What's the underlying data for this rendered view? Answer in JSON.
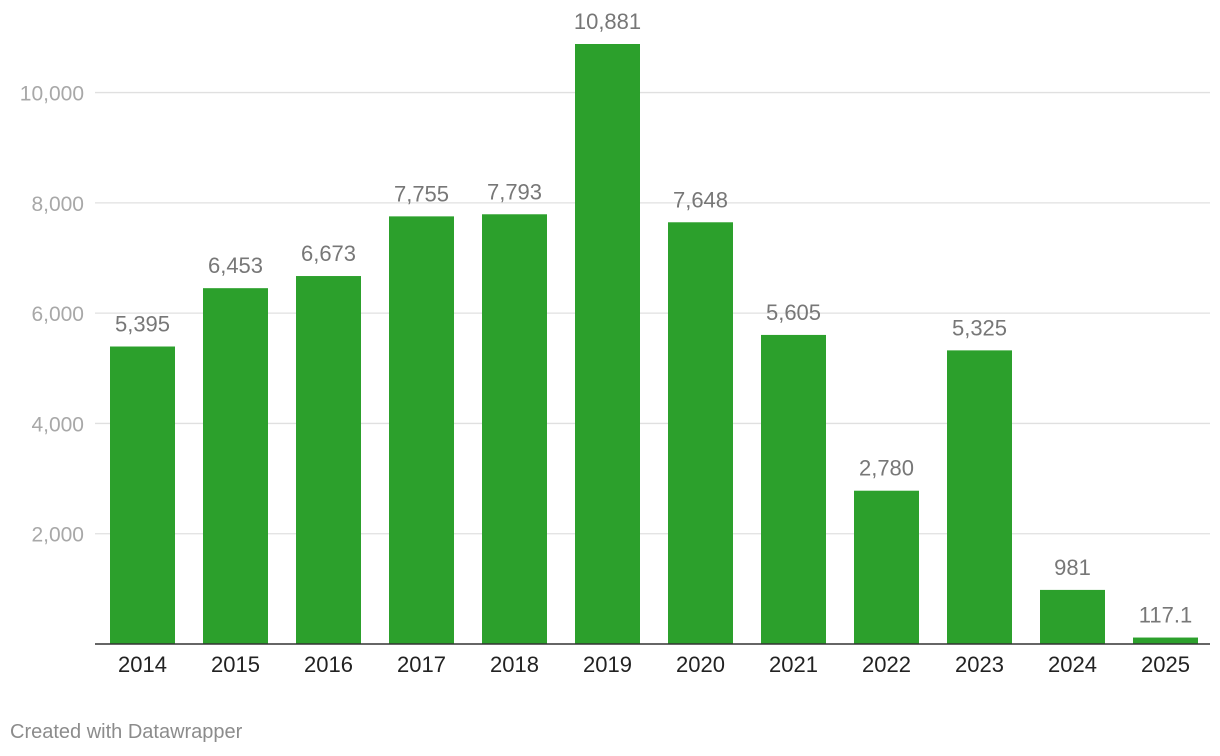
{
  "chart_data": {
    "type": "bar",
    "categories": [
      "2014",
      "2015",
      "2016",
      "2017",
      "2018",
      "2019",
      "2020",
      "2021",
      "2022",
      "2023",
      "2024",
      "2025"
    ],
    "values": [
      5395,
      6453,
      6673,
      7755,
      7793,
      10881,
      7648,
      5605,
      2780,
      5325,
      981,
      117.1
    ],
    "value_labels": [
      "5,395",
      "6,453",
      "6,673",
      "7,755",
      "7,793",
      "10,881",
      "7,648",
      "5,605",
      "2,780",
      "5,325",
      "981",
      "117.1"
    ],
    "y_ticks": [
      2000,
      4000,
      6000,
      8000,
      10000
    ],
    "y_tick_labels": [
      "2,000",
      "4,000",
      "6,000",
      "8,000",
      "10,000"
    ],
    "ylim": [
      0,
      10881
    ],
    "grid": true,
    "title": "",
    "xlabel": "",
    "ylabel": ""
  },
  "colors": {
    "bar": "#2ca02c",
    "grid": "#e0e0e0",
    "axis": "#333333",
    "tick_label": "#a8a8a8",
    "value_label": "#777777",
    "category_label": "#222222"
  },
  "footer": {
    "credit": "Created with Datawrapper"
  }
}
